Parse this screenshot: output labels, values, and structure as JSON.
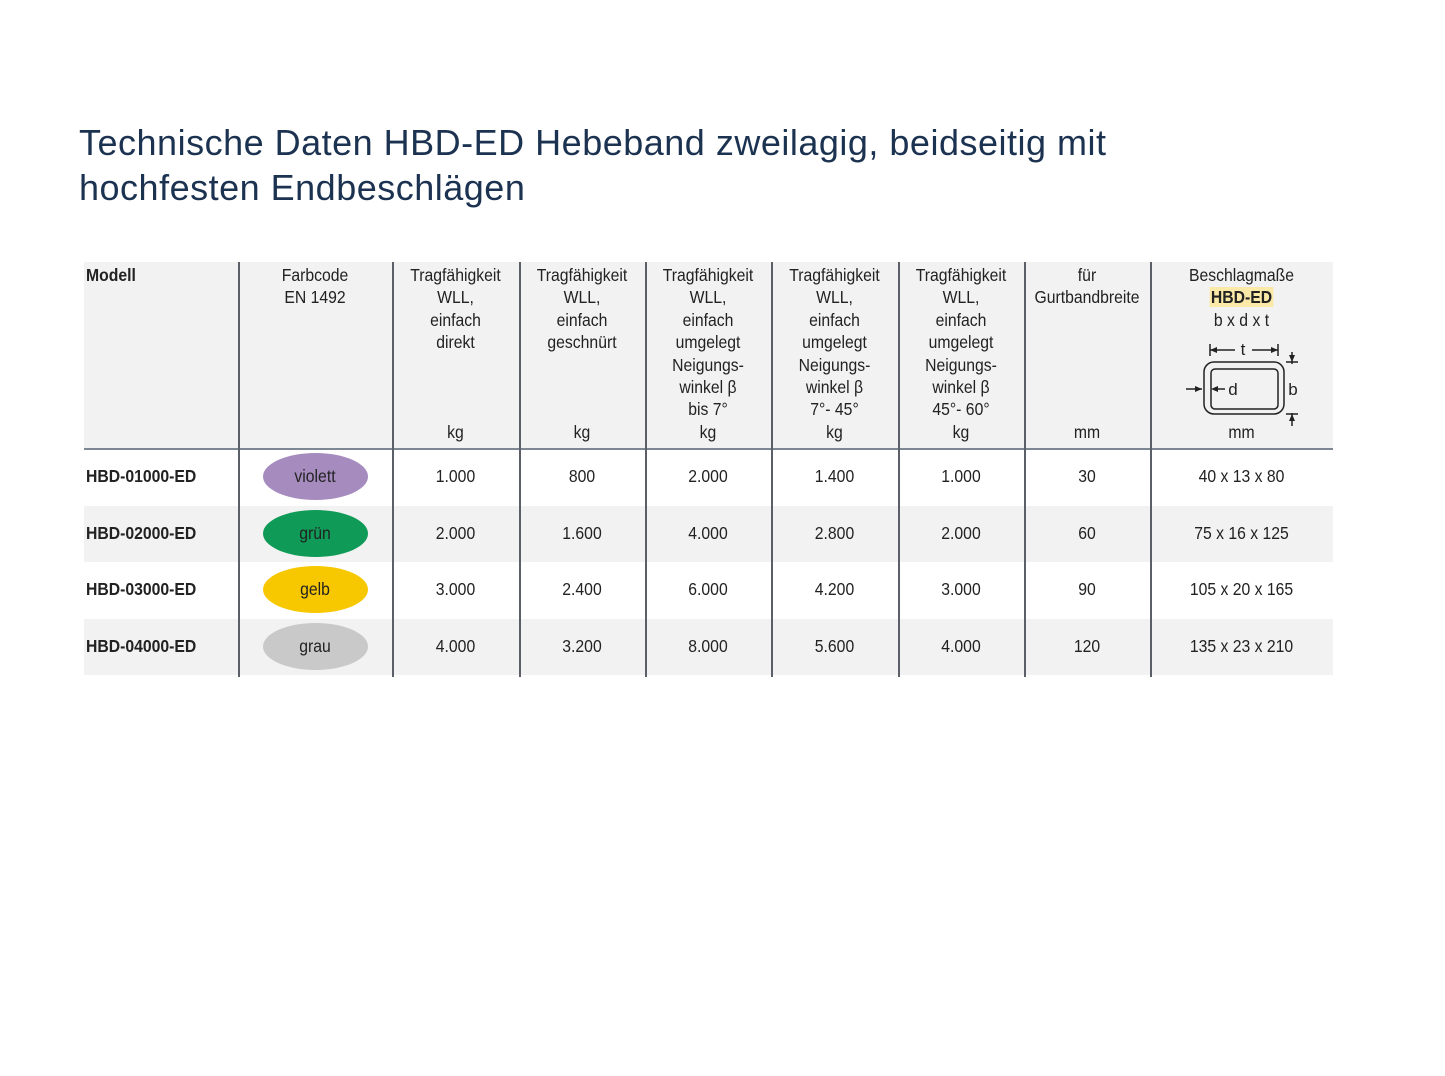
{
  "title": "Technische Daten HBD-ED Hebeband zweilagig, beidseitig mit hochfesten Endbeschlägen",
  "table": {
    "header": [
      {
        "lines": [
          "Modell"
        ]
      },
      {
        "lines": [
          "Farbcode",
          "EN 1492"
        ]
      },
      {
        "lines": [
          "Tragfähigkeit",
          "WLL,",
          "einfach",
          "direkt"
        ],
        "unit": "kg"
      },
      {
        "lines": [
          "Tragfähigkeit",
          "WLL,",
          "einfach",
          "geschnürt"
        ],
        "unit": "kg"
      },
      {
        "lines": [
          "Tragfähigkeit",
          "WLL,",
          "einfach",
          "umgelegt",
          "Neigungs-",
          "winkel β",
          "bis 7°"
        ],
        "unit": "kg"
      },
      {
        "lines": [
          "Tragfähigkeit",
          "WLL,",
          "einfach",
          "umgelegt",
          "Neigungs-",
          "winkel β",
          "7°- 45°"
        ],
        "unit": "kg"
      },
      {
        "lines": [
          "Tragfähigkeit",
          "WLL,",
          "einfach",
          "umgelegt",
          "Neigungs-",
          "winkel β",
          "45°- 60°"
        ],
        "unit": "kg"
      },
      {
        "lines": [
          "für",
          "Gurtbandbreite"
        ],
        "unit": "mm"
      },
      {
        "lines": [
          "Beschlagmaße",
          "HBD-ED",
          "b x d x t"
        ],
        "unit": "mm",
        "diagram": {
          "t": "t",
          "d": "d",
          "b": "b"
        }
      }
    ],
    "rows": [
      {
        "model": "HBD-01000-ED",
        "code": {
          "label": "violett",
          "color": "#a68bbf"
        },
        "values": [
          "1.000",
          "800",
          "2.000",
          "1.400",
          "1.000",
          "30",
          "40 x 13 x 80"
        ]
      },
      {
        "model": "HBD-02000-ED",
        "code": {
          "label": "grün",
          "color": "#0f9b57"
        },
        "values": [
          "2.000",
          "1.600",
          "4.000",
          "2.800",
          "2.000",
          "60",
          "75 x 16 x 125"
        ]
      },
      {
        "model": "HBD-03000-ED",
        "code": {
          "label": "gelb",
          "color": "#f7c800"
        },
        "values": [
          "3.000",
          "2.400",
          "6.000",
          "4.200",
          "3.000",
          "90",
          "105 x 20 x 165"
        ]
      },
      {
        "model": "HBD-04000-ED",
        "code": {
          "label": "grau",
          "color": "#c9c9c9"
        },
        "values": [
          "4.000",
          "3.200",
          "8.000",
          "5.600",
          "4.000",
          "120",
          "135 x 23 x 210"
        ]
      }
    ]
  }
}
